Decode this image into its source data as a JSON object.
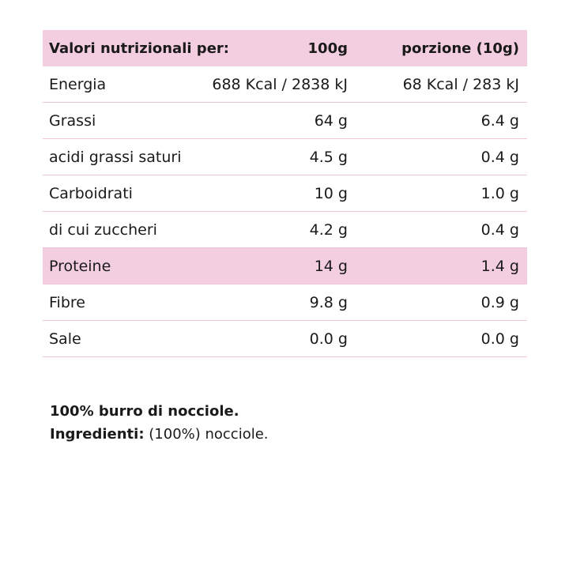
{
  "table": {
    "header": [
      "Valori nutrizionali per:",
      "100g",
      "porzione (10g)"
    ],
    "rows": [
      [
        "Energia",
        "688 Kcal / 2838 kJ",
        "68 Kcal / 283 kJ"
      ],
      [
        "Grassi",
        "64 g",
        "6.4 g"
      ],
      [
        "acidi grassi saturi",
        "4.5 g",
        "0.4 g"
      ],
      [
        "Carboidrati",
        "10 g",
        "1.0 g"
      ],
      [
        "di cui zuccheri",
        "4.2 g",
        "0.4 g"
      ],
      [
        "Proteine",
        "14 g",
        "1.4 g"
      ],
      [
        "Fibre",
        "9.8 g",
        "0.9 g"
      ],
      [
        "Sale",
        "0.0 g",
        "0.0 g"
      ]
    ]
  },
  "footer": {
    "line": "100% burro di nocciole.",
    "ingredients_label": "Ingredienti:",
    "ingredients_text": "(100%) nocciole."
  }
}
